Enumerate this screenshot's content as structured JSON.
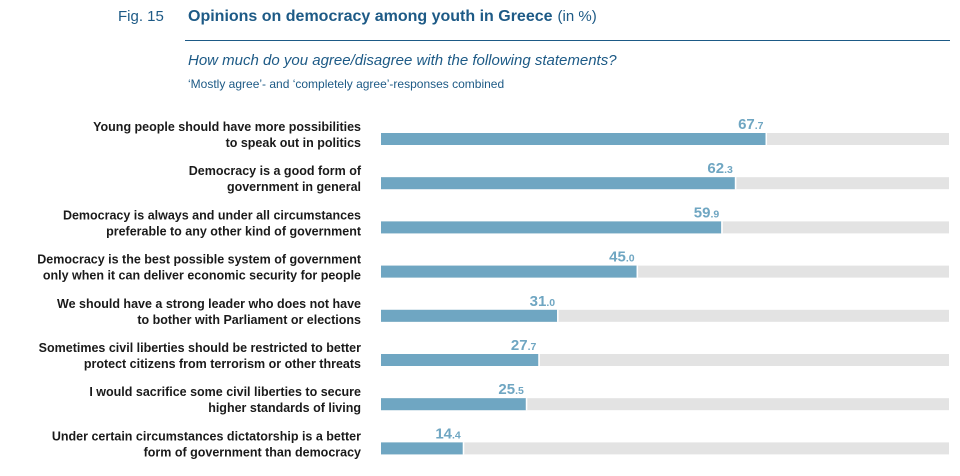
{
  "figure": {
    "number": "Fig. 15",
    "title": "Opinions on democracy among youth in Greece",
    "unit": "(in %)",
    "question": "How much do you agree/disagree with the following statements?",
    "note": "‘Mostly agree’- and ‘completely agree’-responses combined"
  },
  "colors": {
    "bar": "#6fa6c2",
    "track": "#e3e3e3",
    "title": "#1d5a86",
    "value": "#6fa6c2"
  },
  "chart_data": {
    "type": "bar",
    "orientation": "horizontal",
    "xlim": [
      0,
      100
    ],
    "categories": [
      [
        "Young people should have more possibilities",
        "to speak out in politics"
      ],
      [
        "Democracy is a good form of",
        "government in general"
      ],
      [
        "Democracy is always and under all circumstances",
        "preferable to any other kind of government"
      ],
      [
        "Democracy is the best possible system of government",
        "only when it can deliver economic security for people"
      ],
      [
        "We should have a strong leader who does not have",
        "to bother with Parliament or elections"
      ],
      [
        "Sometimes civil liberties should be restricted to better",
        "protect citizens from terrorism or other threats"
      ],
      [
        "I would sacrifice some civil liberties to secure",
        "higher standards of living"
      ],
      [
        "Under certain circumstances dictatorship is a better",
        "form of government than democracy"
      ]
    ],
    "values": [
      67.7,
      62.3,
      59.9,
      45.0,
      31.0,
      27.7,
      25.5,
      14.4
    ],
    "value_labels": [
      [
        "67",
        ".7"
      ],
      [
        "62",
        ".3"
      ],
      [
        "59",
        ".9"
      ],
      [
        "45",
        ".0"
      ],
      [
        "31",
        ".0"
      ],
      [
        "27",
        ".7"
      ],
      [
        "25",
        ".5"
      ],
      [
        "14",
        ".4"
      ]
    ],
    "grid": false,
    "legend": "none"
  }
}
